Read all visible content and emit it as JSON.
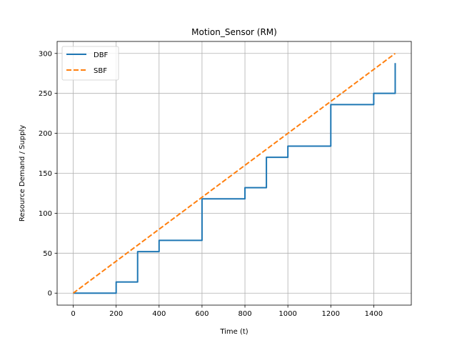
{
  "chart_data": {
    "type": "line",
    "title": "Motion_Sensor (RM)",
    "xlabel": "Time (t)",
    "ylabel": "Resource Demand / Supply",
    "xlim": [
      -75,
      1575
    ],
    "ylim": [
      -15,
      315
    ],
    "xticks": [
      0,
      200,
      400,
      600,
      800,
      1000,
      1200,
      1400
    ],
    "yticks": [
      0,
      50,
      100,
      150,
      200,
      250,
      300
    ],
    "grid": true,
    "legend": "top-left",
    "series": [
      {
        "name": "DBF",
        "color": "#1f77b4",
        "style": "solid",
        "x": [
          0,
          200,
          200,
          300,
          300,
          400,
          400,
          600,
          600,
          800,
          800,
          900,
          900,
          1000,
          1000,
          1200,
          1200,
          1400,
          1400,
          1500,
          1500
        ],
        "y": [
          0,
          0,
          14,
          14,
          52,
          52,
          66,
          66,
          118,
          118,
          132,
          132,
          170,
          170,
          184,
          184,
          236,
          236,
          250,
          250,
          288
        ]
      },
      {
        "name": "SBF",
        "color": "#ff7f0e",
        "style": "dashed",
        "x": [
          0,
          1500
        ],
        "y": [
          0,
          300
        ]
      }
    ]
  }
}
